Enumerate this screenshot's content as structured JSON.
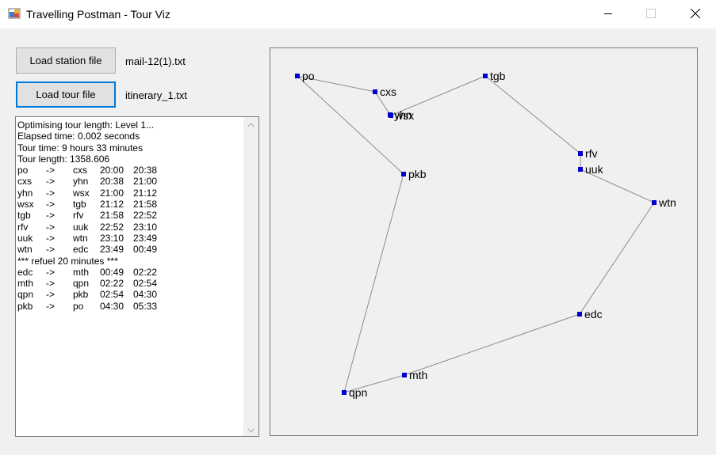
{
  "window": {
    "title": "Travelling Postman - Tour Viz",
    "controls": {
      "minimize_icon": "minimize-icon",
      "maximize_icon": "maximize-icon",
      "close_icon": "close-icon"
    }
  },
  "buttons": {
    "load_station": "Load station file",
    "load_tour": "Load tour file"
  },
  "files": {
    "station_file": "mail-12(1).txt",
    "tour_file": "itinerary_1.txt"
  },
  "log": {
    "header": [
      "Optimising tour length: Level 1...",
      "Elapsed time: 0.002 seconds",
      "Tour time: 9 hours 33 minutes",
      "Tour length: 1358.606"
    ],
    "legs_part1": [
      {
        "from": "po",
        "arrow": "->",
        "to": "cxs",
        "depart": "20:00",
        "arrive": "20:38"
      },
      {
        "from": "cxs",
        "arrow": "->",
        "to": "yhn",
        "depart": "20:38",
        "arrive": "21:00"
      },
      {
        "from": "yhn",
        "arrow": "->",
        "to": "wsx",
        "depart": "21:00",
        "arrive": "21:12"
      },
      {
        "from": "wsx",
        "arrow": "->",
        "to": "tgb",
        "depart": "21:12",
        "arrive": "21:58"
      },
      {
        "from": "tgb",
        "arrow": "->",
        "to": "rfv",
        "depart": "21:58",
        "arrive": "22:52"
      },
      {
        "from": "rfv",
        "arrow": "->",
        "to": "uuk",
        "depart": "22:52",
        "arrive": "23:10"
      },
      {
        "from": "uuk",
        "arrow": "->",
        "to": "wtn",
        "depart": "23:10",
        "arrive": "23:49"
      },
      {
        "from": "wtn",
        "arrow": "->",
        "to": "edc",
        "depart": "23:49",
        "arrive": "00:49"
      }
    ],
    "refuel": "*** refuel 20 minutes ***",
    "legs_part2": [
      {
        "from": "edc",
        "arrow": "->",
        "to": "mth",
        "depart": "00:49",
        "arrive": "02:22"
      },
      {
        "from": "mth",
        "arrow": "->",
        "to": "qpn",
        "depart": "02:22",
        "arrive": "02:54"
      },
      {
        "from": "qpn",
        "arrow": "->",
        "to": "pkb",
        "depart": "02:54",
        "arrive": "04:30"
      },
      {
        "from": "pkb",
        "arrow": "->",
        "to": "po",
        "depart": "04:30",
        "arrive": "05:33"
      }
    ]
  },
  "stations": [
    "po",
    "cxs",
    "yhn",
    "wsx",
    "tgb",
    "rfv",
    "uuk",
    "wtn",
    "edc",
    "mth",
    "qpn",
    "pkb"
  ],
  "tour_order": [
    "po",
    "cxs",
    "yhn",
    "wsx",
    "tgb",
    "rfv",
    "uuk",
    "wtn",
    "edc",
    "mth",
    "qpn",
    "pkb",
    "po"
  ],
  "colors": {
    "station_marker": "#0000cc",
    "route_line": "#8c8c8c",
    "focus_border": "#0078d7"
  }
}
